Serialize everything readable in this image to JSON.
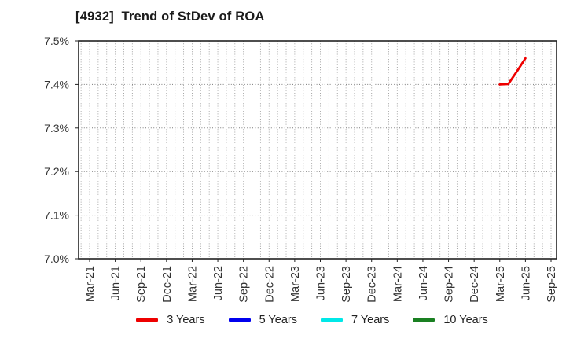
{
  "header": {
    "title": "[4932]  Trend of StDev of ROA"
  },
  "chart_data": {
    "type": "line",
    "title": "[4932]  Trend of StDev of ROA",
    "xlabel": "",
    "ylabel": "",
    "ylim": [
      7.0,
      7.5
    ],
    "grid": {
      "horizontal": "dotted every 0.1%",
      "vertical": "dotted every month"
    },
    "legend_position": "bottom-center",
    "x_axis": {
      "start_month": "Mar-21",
      "end_month": "Sep-25",
      "months_total": 55,
      "tick_every_months": 3
    },
    "y_ticks": [
      {
        "value": 7.0,
        "label": "7.0%"
      },
      {
        "value": 7.1,
        "label": "7.1%"
      },
      {
        "value": 7.2,
        "label": "7.2%"
      },
      {
        "value": 7.3,
        "label": "7.3%"
      },
      {
        "value": 7.4,
        "label": "7.4%"
      },
      {
        "value": 7.5,
        "label": "7.5%"
      }
    ],
    "x_ticks": [
      {
        "month_index": 0,
        "label": "Mar-21"
      },
      {
        "month_index": 3,
        "label": "Jun-21"
      },
      {
        "month_index": 6,
        "label": "Sep-21"
      },
      {
        "month_index": 9,
        "label": "Dec-21"
      },
      {
        "month_index": 12,
        "label": "Mar-22"
      },
      {
        "month_index": 15,
        "label": "Jun-22"
      },
      {
        "month_index": 18,
        "label": "Sep-22"
      },
      {
        "month_index": 21,
        "label": "Dec-22"
      },
      {
        "month_index": 24,
        "label": "Mar-23"
      },
      {
        "month_index": 27,
        "label": "Jun-23"
      },
      {
        "month_index": 30,
        "label": "Sep-23"
      },
      {
        "month_index": 33,
        "label": "Dec-23"
      },
      {
        "month_index": 36,
        "label": "Mar-24"
      },
      {
        "month_index": 39,
        "label": "Jun-24"
      },
      {
        "month_index": 42,
        "label": "Sep-24"
      },
      {
        "month_index": 45,
        "label": "Dec-24"
      },
      {
        "month_index": 48,
        "label": "Mar-25"
      },
      {
        "month_index": 51,
        "label": "Jun-25"
      },
      {
        "month_index": 54,
        "label": "Sep-25"
      }
    ],
    "series": [
      {
        "name": "3 Years",
        "color": "#ee0000",
        "points": [
          {
            "month": "Mar-25",
            "month_index": 48,
            "value": 7.4
          },
          {
            "month": "Apr-25",
            "month_index": 49,
            "value": 7.401
          },
          {
            "month": "May-25",
            "month_index": 50,
            "value": 7.43
          },
          {
            "month": "Jun-25",
            "month_index": 51,
            "value": 7.46
          }
        ]
      },
      {
        "name": "5 Years",
        "color": "#0000ee",
        "points": []
      },
      {
        "name": "7 Years",
        "color": "#00e8e8",
        "points": []
      },
      {
        "name": "10 Years",
        "color": "#1a8022",
        "points": []
      }
    ]
  }
}
